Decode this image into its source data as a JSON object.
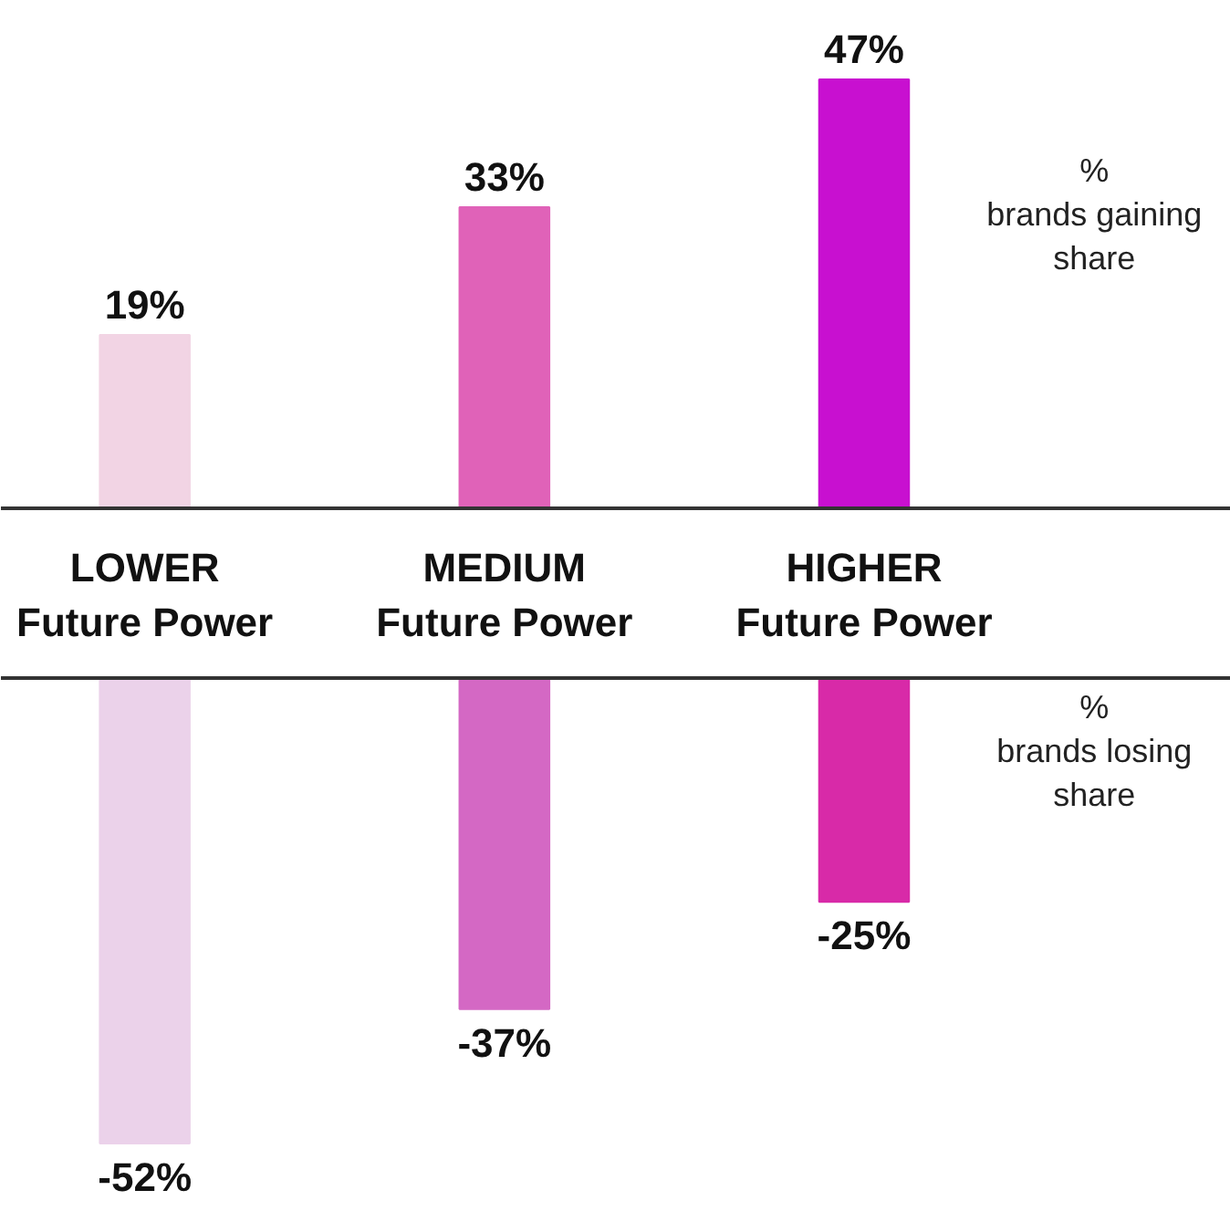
{
  "chart_data": [
    {
      "type": "bar",
      "categories": [
        "LOWER\nFuture Power",
        "MEDIUM\nFuture Power",
        "HIGHER\nFuture Power"
      ],
      "series": [
        {
          "name": "% brands gaining share",
          "colors": [
            "#f2d4e4",
            "#e062b8",
            "#c810d0"
          ],
          "values": [
            19,
            33,
            47
          ],
          "value_labels": [
            "19%",
            "33%",
            "47%"
          ]
        }
      ],
      "legend": "right"
    },
    {
      "type": "bar",
      "categories": [
        null,
        null,
        null
      ],
      "series": [
        {
          "name": "% brands losing share",
          "colors": [
            "#ebd2ea",
            "#d468c4",
            "#d82aa8"
          ],
          "values": [
            -52,
            -37,
            -25
          ],
          "value_labels": [
            "-52%",
            "-37%",
            "-25%"
          ]
        }
      ],
      "legend": "right"
    }
  ]
}
